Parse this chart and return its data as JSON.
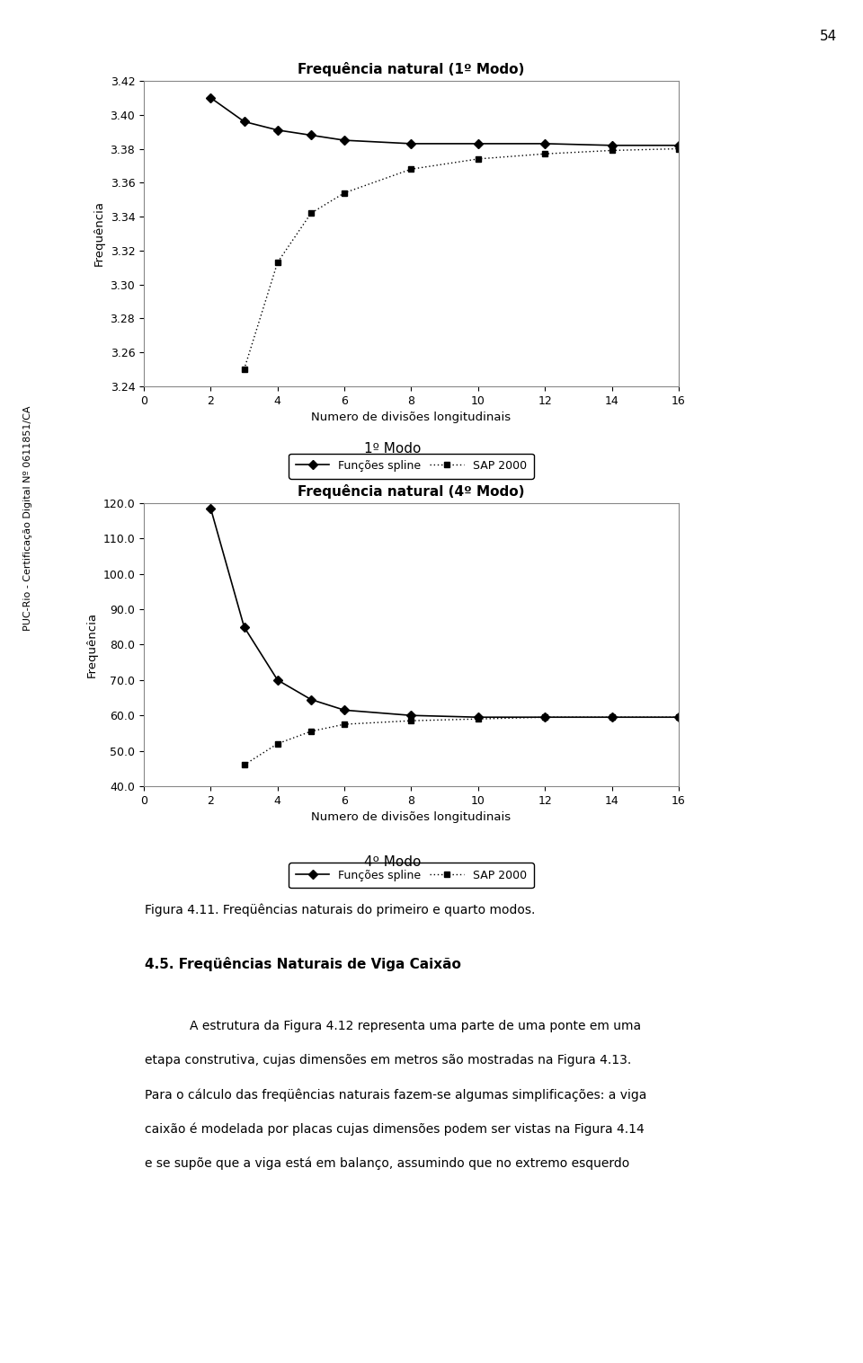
{
  "chart1": {
    "title": "Frequência natural (1º Modo)",
    "xlabel": "Numero de divisões longitudinais",
    "ylabel": "Frequência",
    "ylim": [
      3.24,
      3.42
    ],
    "yticks": [
      3.24,
      3.26,
      3.28,
      3.3,
      3.32,
      3.34,
      3.36,
      3.38,
      3.4,
      3.42
    ],
    "xlim": [
      0,
      16
    ],
    "xticks": [
      0,
      2,
      4,
      6,
      8,
      10,
      12,
      14,
      16
    ],
    "spline_x": [
      2,
      3,
      4,
      5,
      6,
      8,
      10,
      12,
      14,
      16
    ],
    "spline_y": [
      3.41,
      3.396,
      3.391,
      3.388,
      3.385,
      3.383,
      3.383,
      3.383,
      3.382,
      3.382
    ],
    "sap_x": [
      3,
      4,
      5,
      6,
      8,
      10,
      12,
      14,
      16
    ],
    "sap_y": [
      3.25,
      3.313,
      3.342,
      3.354,
      3.368,
      3.374,
      3.377,
      3.379,
      3.38
    ],
    "caption": "1º Modo"
  },
  "chart2": {
    "title": "Frequência natural (4º Modo)",
    "xlabel": "Numero de divisões longitudinais",
    "ylabel": "Frequência",
    "ylim": [
      40.0,
      120.0
    ],
    "yticks": [
      40.0,
      50.0,
      60.0,
      70.0,
      80.0,
      90.0,
      100.0,
      110.0,
      120.0
    ],
    "xlim": [
      0,
      16
    ],
    "xticks": [
      0,
      2,
      4,
      6,
      8,
      10,
      12,
      14,
      16
    ],
    "spline_x": [
      2,
      3,
      4,
      5,
      6,
      8,
      10,
      12,
      14,
      16
    ],
    "spline_y": [
      118.5,
      85.0,
      70.0,
      64.5,
      61.5,
      60.0,
      59.5,
      59.5,
      59.5,
      59.5
    ],
    "sap_x": [
      3,
      4,
      5,
      6,
      8,
      10,
      12,
      14,
      16
    ],
    "sap_y": [
      46.0,
      52.0,
      55.5,
      57.5,
      58.5,
      59.0,
      59.5,
      59.5,
      59.5
    ],
    "caption": "4º Modo"
  },
  "legend_spline": "Funções spline",
  "legend_sap": "SAP 2000",
  "figure_caption": "Figura 4.11. Freqüências naturais do primeiro e quarto modos.",
  "section_title": "4.5. Freqüências Naturais de Viga Caixão",
  "paragraph_line1": "A estrutura da Figura 4.12 representa uma parte de uma ponte em uma",
  "paragraph_line2": "etapa construtiva, cujas dimensões em metros são mostradas na Figura 4.13.",
  "paragraph_line3": "Para o cálculo das freqüências naturais fazem-se algumas simplificações: a viga",
  "paragraph_line4": "caixão é modelada por placas cujas dimensões podem ser vistas na Figura 4.14",
  "paragraph_line5": "e se supõe que a viga está em balanço, assumindo que no extremo esquerdo",
  "page_number": "54",
  "bg_color": "#ffffff",
  "sidebar_text": "PUC-Rio - Certificação Digital Nº 0611851/CA"
}
